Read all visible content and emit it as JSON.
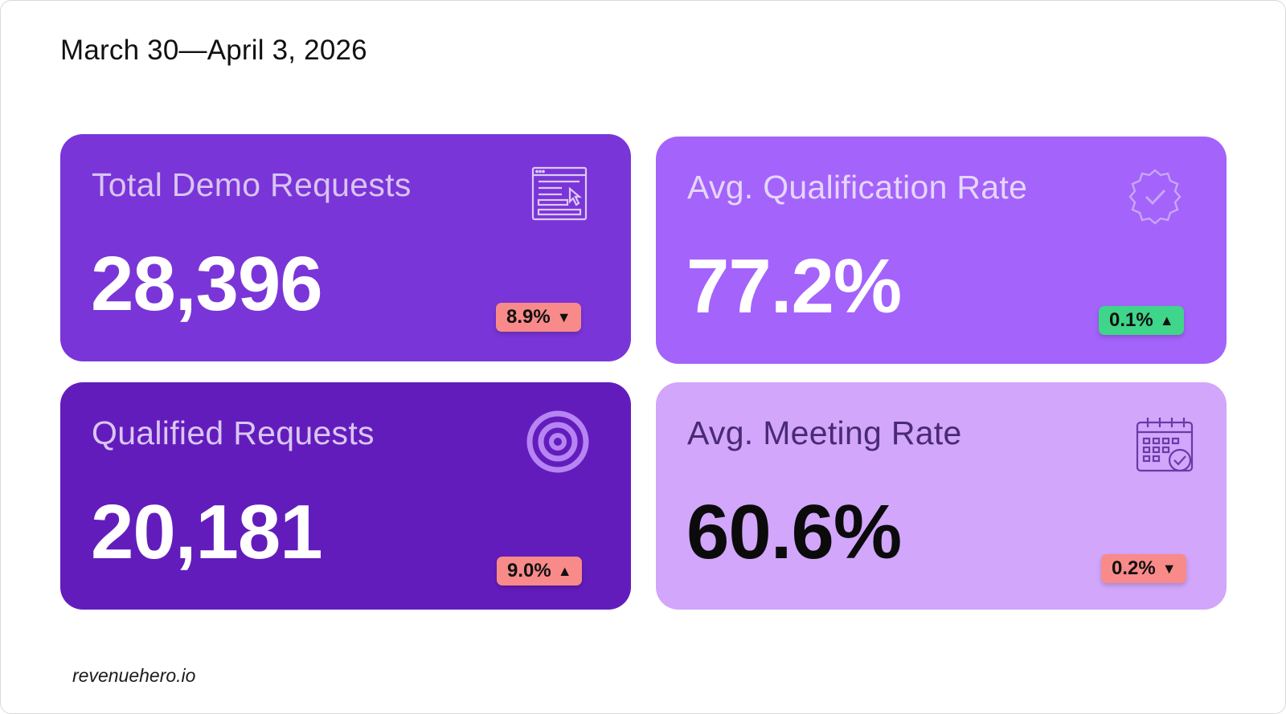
{
  "date_range": "March 30—April 3, 2026",
  "cards": [
    {
      "label": "Total Demo Requests",
      "value": "28,396",
      "change": "8.9%",
      "direction": "▼",
      "icon": "form-cursor-icon",
      "badge_color": "#f98a8a"
    },
    {
      "label": "Avg. Qualification Rate",
      "value": "77.2%",
      "change": "0.1%",
      "direction": "▲",
      "icon": "verified-badge-icon",
      "badge_color": "#3fd58a"
    },
    {
      "label": "Qualified Requests",
      "value": "20,181",
      "change": "9.0%",
      "direction": "▲",
      "icon": "target-icon",
      "badge_color": "#f98a8a"
    },
    {
      "label": "Avg. Meeting Rate",
      "value": "60.6%",
      "change": "0.2%",
      "direction": "▼",
      "icon": "calendar-check-icon",
      "badge_color": "#f98a8a"
    }
  ],
  "brand": "revenuehero.io",
  "colors": {
    "card_1": "#7a35d8",
    "card_2": "#a463fb",
    "card_3": "#631cbc",
    "card_4": "#d1a6fb"
  }
}
